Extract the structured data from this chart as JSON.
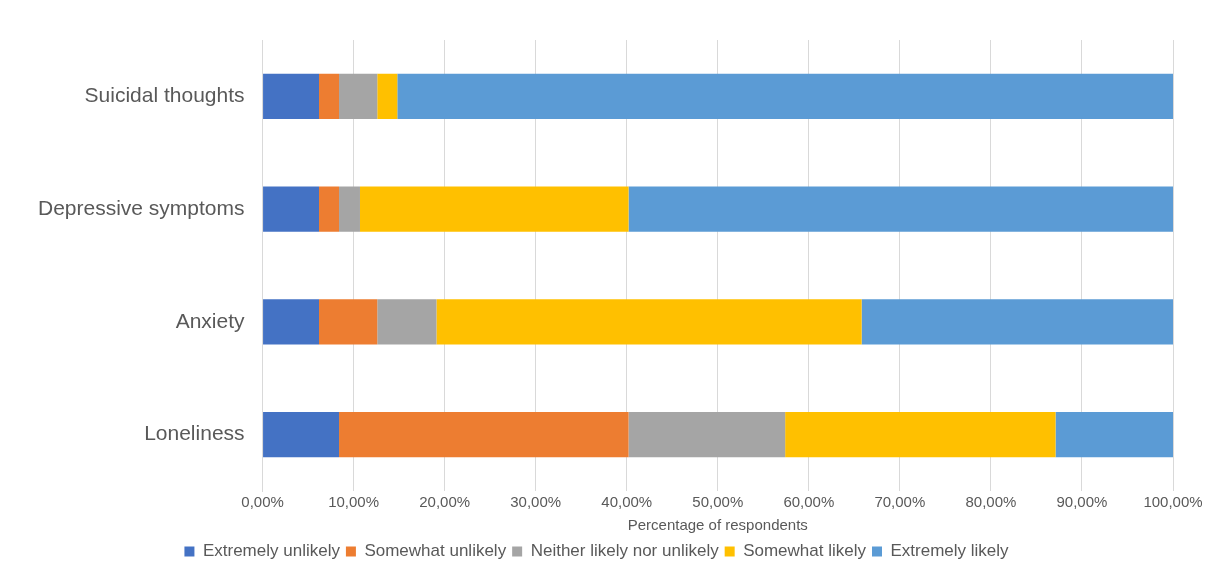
{
  "chart_data": {
    "type": "bar",
    "orientation": "horizontal",
    "stacked": true,
    "xlabel": "Percentage of respondents",
    "categories": [
      "Suicidal thoughts",
      "Depressive symptoms",
      "Anxiety",
      "Loneliness"
    ],
    "series": [
      {
        "name": "Extremely unlikely",
        "color": "#4472c4",
        "values": [
          6.2,
          6.2,
          6.2,
          8.4
        ]
      },
      {
        "name": "Somewhat unlikely",
        "color": "#ed7d31",
        "values": [
          2.2,
          2.2,
          6.4,
          31.8
        ]
      },
      {
        "name": "Neither likely nor unlikely",
        "color": "#a5a5a5",
        "values": [
          4.2,
          2.3,
          6.5,
          17.2
        ]
      },
      {
        "name": "Somewhat likely",
        "color": "#ffc000",
        "values": [
          2.2,
          29.5,
          46.7,
          29.7
        ]
      },
      {
        "name": "Extremely likely",
        "color": "#5b9bd5",
        "values": [
          85.2,
          59.8,
          34.2,
          12.9
        ]
      }
    ],
    "xlim": [
      0,
      100
    ],
    "xticks": [
      {
        "value": 0,
        "label": "0,00%"
      },
      {
        "value": 10,
        "label": "10,00%"
      },
      {
        "value": 20,
        "label": "20,00%"
      },
      {
        "value": 30,
        "label": "30,00%"
      },
      {
        "value": 40,
        "label": "40,00%"
      },
      {
        "value": 50,
        "label": "50,00%"
      },
      {
        "value": 60,
        "label": "60,00%"
      },
      {
        "value": 70,
        "label": "70,00%"
      },
      {
        "value": 80,
        "label": "80,00%"
      },
      {
        "value": 90,
        "label": "90,00%"
      },
      {
        "value": 100,
        "label": "100,00%"
      }
    ],
    "grid": "x",
    "legend": "bottom"
  }
}
